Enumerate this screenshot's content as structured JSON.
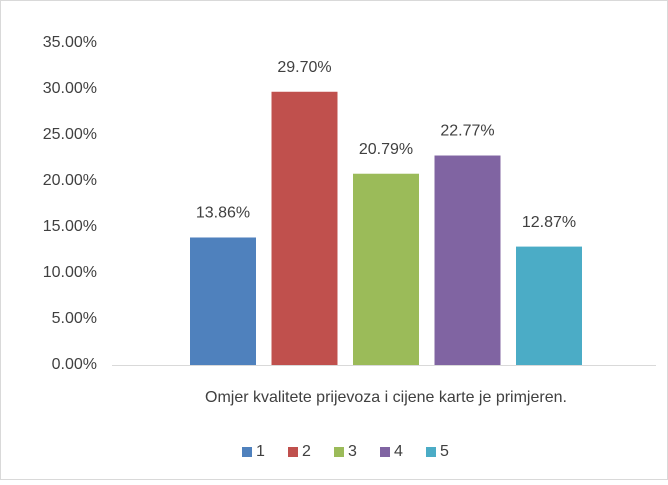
{
  "chart_data": {
    "type": "bar",
    "categories": [
      "Omjer kvalitete prijevoza i cijene karte je primjeren."
    ],
    "series": [
      {
        "name": "1",
        "color": "#4f81bd",
        "values": [
          13.86
        ],
        "value_labels": [
          "13.86%"
        ]
      },
      {
        "name": "2",
        "color": "#c0504d",
        "values": [
          29.7
        ],
        "value_labels": [
          "29.70%"
        ]
      },
      {
        "name": "3",
        "color": "#9bbb59",
        "values": [
          20.79
        ],
        "value_labels": [
          "20.79%"
        ]
      },
      {
        "name": "4",
        "color": "#8064a2",
        "values": [
          22.77
        ],
        "value_labels": [
          "22.77%"
        ]
      },
      {
        "name": "5",
        "color": "#4bacc6",
        "values": [
          12.87
        ],
        "value_labels": [
          "12.87%"
        ]
      }
    ],
    "ylim": [
      0,
      35
    ],
    "yticks": [
      {
        "value": 0,
        "label": "0.00%"
      },
      {
        "value": 5,
        "label": "5.00%"
      },
      {
        "value": 10,
        "label": "10.00%"
      },
      {
        "value": 15,
        "label": "15.00%"
      },
      {
        "value": 20,
        "label": "20.00%"
      },
      {
        "value": 25,
        "label": "25.00%"
      },
      {
        "value": 30,
        "label": "30.00%"
      },
      {
        "value": 35,
        "label": "35.00%"
      }
    ],
    "grid": false,
    "legend": "bottom"
  }
}
